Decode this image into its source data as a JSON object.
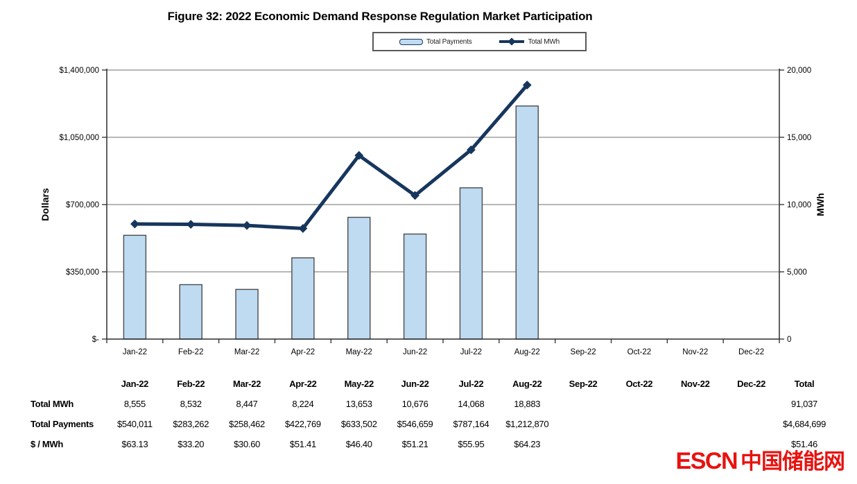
{
  "title": "Figure 32:  2022 Economic Demand Response Regulation Market Participation",
  "legend": {
    "payments_label": "Total Payments",
    "mwh_label": "Total MWh"
  },
  "chart_data": {
    "type": "bar+line",
    "categories": [
      "Jan-22",
      "Feb-22",
      "Mar-22",
      "Apr-22",
      "May-22",
      "Jun-22",
      "Jul-22",
      "Aug-22",
      "Sep-22",
      "Oct-22",
      "Nov-22",
      "Dec-22"
    ],
    "series": [
      {
        "name": "Total Payments",
        "type": "bar",
        "axis": "left",
        "values": [
          540011,
          283262,
          258462,
          422769,
          633502,
          546659,
          787164,
          1212870,
          null,
          null,
          null,
          null
        ],
        "color": "#BFDBF2",
        "border_color": "#4A4A4A"
      },
      {
        "name": "Total MWh",
        "type": "line",
        "axis": "right",
        "values": [
          8555,
          8532,
          8447,
          8224,
          13653,
          10676,
          14068,
          18883,
          null,
          null,
          null,
          null
        ],
        "color": "#17365D"
      }
    ],
    "left_axis": {
      "label": "Dollars",
      "min": 0,
      "max": 1400000,
      "tick_labels": [
        "$-",
        "$350,000",
        "$700,000",
        "$1,050,000",
        "$1,400,000"
      ]
    },
    "right_axis": {
      "label": "MWh",
      "min": 0,
      "max": 20000,
      "tick_labels": [
        "0",
        "5,000",
        "10,000",
        "15,000",
        "20,000"
      ]
    },
    "grid": true,
    "legend_position": "top",
    "grid_color": "#8C8C8C",
    "axis_color": "#2B2B2B"
  },
  "table": {
    "columns": [
      "Jan-22",
      "Feb-22",
      "Mar-22",
      "Apr-22",
      "May-22",
      "Jun-22",
      "Jul-22",
      "Aug-22",
      "Sep-22",
      "Oct-22",
      "Nov-22",
      "Dec-22",
      "Total"
    ],
    "rows": [
      {
        "label": "Total MWh",
        "values": [
          "8,555",
          "8,532",
          "8,447",
          "8,224",
          "13,653",
          "10,676",
          "14,068",
          "18,883",
          "",
          "",
          "",
          "",
          "91,037"
        ]
      },
      {
        "label": "Total Payments",
        "values": [
          "$540,011",
          "$283,262",
          "$258,462",
          "$422,769",
          "$633,502",
          "$546,659",
          "$787,164",
          "$1,212,870",
          "",
          "",
          "",
          "",
          "$4,684,699"
        ]
      },
      {
        "label": "$ / MWh",
        "values": [
          "$63.13",
          "$33.20",
          "$30.60",
          "$51.41",
          "$46.40",
          "$51.21",
          "$55.95",
          "$64.23",
          "",
          "",
          "",
          "",
          "$51.46"
        ]
      }
    ]
  },
  "logo": {
    "latin": "ESCN",
    "cjk": "中国储能网",
    "color": "#E8120F"
  }
}
